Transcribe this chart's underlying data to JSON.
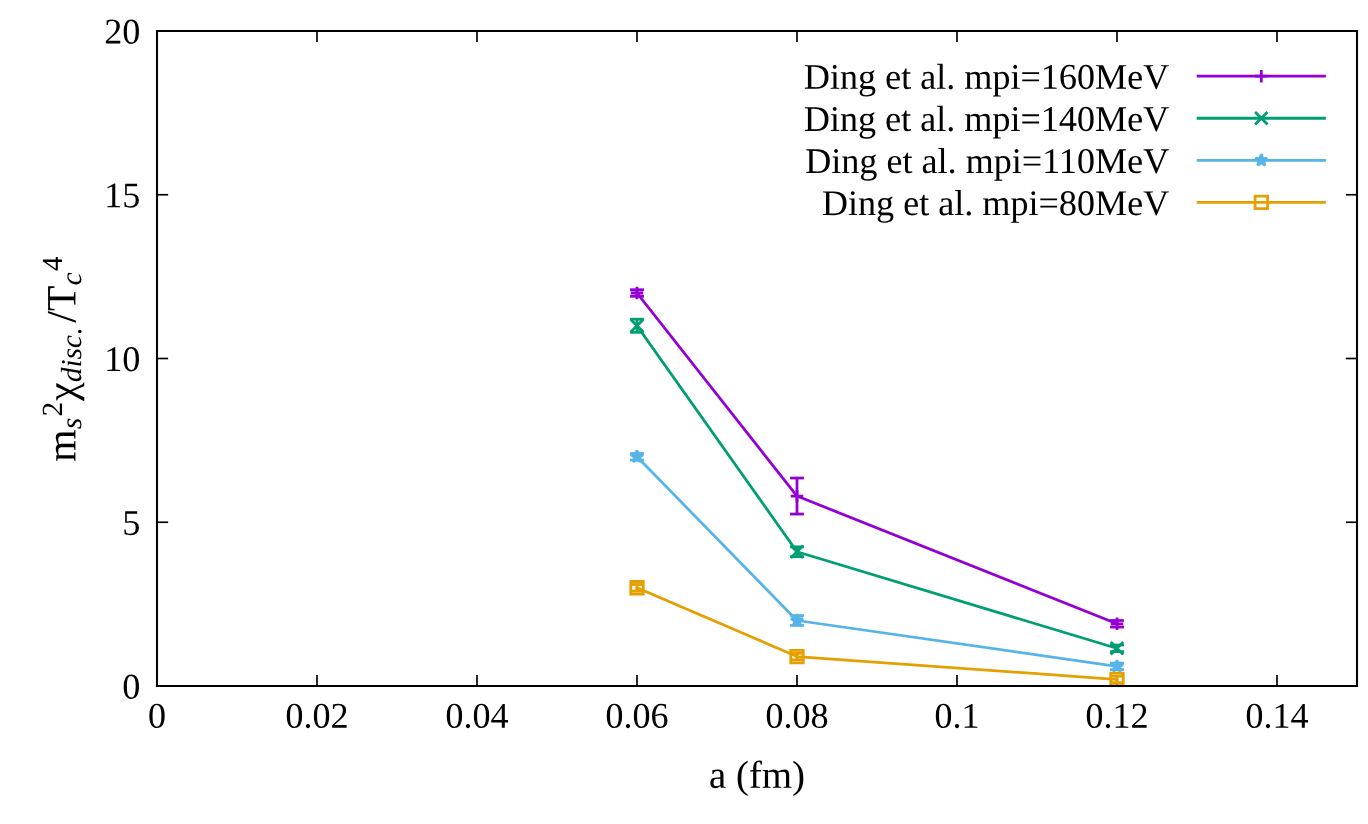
{
  "chart_data": {
    "type": "line",
    "xlabel": "a (fm)",
    "ylabel": "m$_{s}$$^{2}$χ$_{disc.}$/T$_{c}$$^{4}$",
    "x": [
      0.06,
      0.08,
      0.12
    ],
    "series": [
      {
        "name": "Ding et al. mpi=160MeV",
        "color": "#9400d3",
        "marker": "plus",
        "values": [
          12.0,
          5.8,
          1.9
        ],
        "errors": [
          0.1,
          0.55,
          0.1
        ]
      },
      {
        "name": "Ding et al. mpi=140MeV",
        "color": "#009e73",
        "marker": "cross",
        "values": [
          11.0,
          4.1,
          1.15
        ],
        "errors": [
          0.2,
          0.15,
          0.1
        ]
      },
      {
        "name": "Ding et al. mpi=110MeV",
        "color": "#56b4e9",
        "marker": "star",
        "values": [
          7.0,
          2.0,
          0.6
        ],
        "errors": [
          0.1,
          0.15,
          0.1
        ]
      },
      {
        "name": "Ding et al. mpi=80MeV",
        "color": "#e69f00",
        "marker": "square",
        "values": [
          3.0,
          0.9,
          0.2
        ],
        "errors": [
          0.1,
          0.1,
          0.1
        ]
      }
    ],
    "xlim": [
      0,
      0.15
    ],
    "xticks": [
      0,
      0.02,
      0.04,
      0.06,
      0.08,
      {
        "value": 0.1,
        "label": "0.1"
      },
      0.12,
      0.14
    ],
    "ylim": [
      0,
      20
    ],
    "yticks": [
      0,
      5,
      10,
      15,
      20
    ],
    "grid": false,
    "legend": "top right",
    "line_style": "solid"
  }
}
